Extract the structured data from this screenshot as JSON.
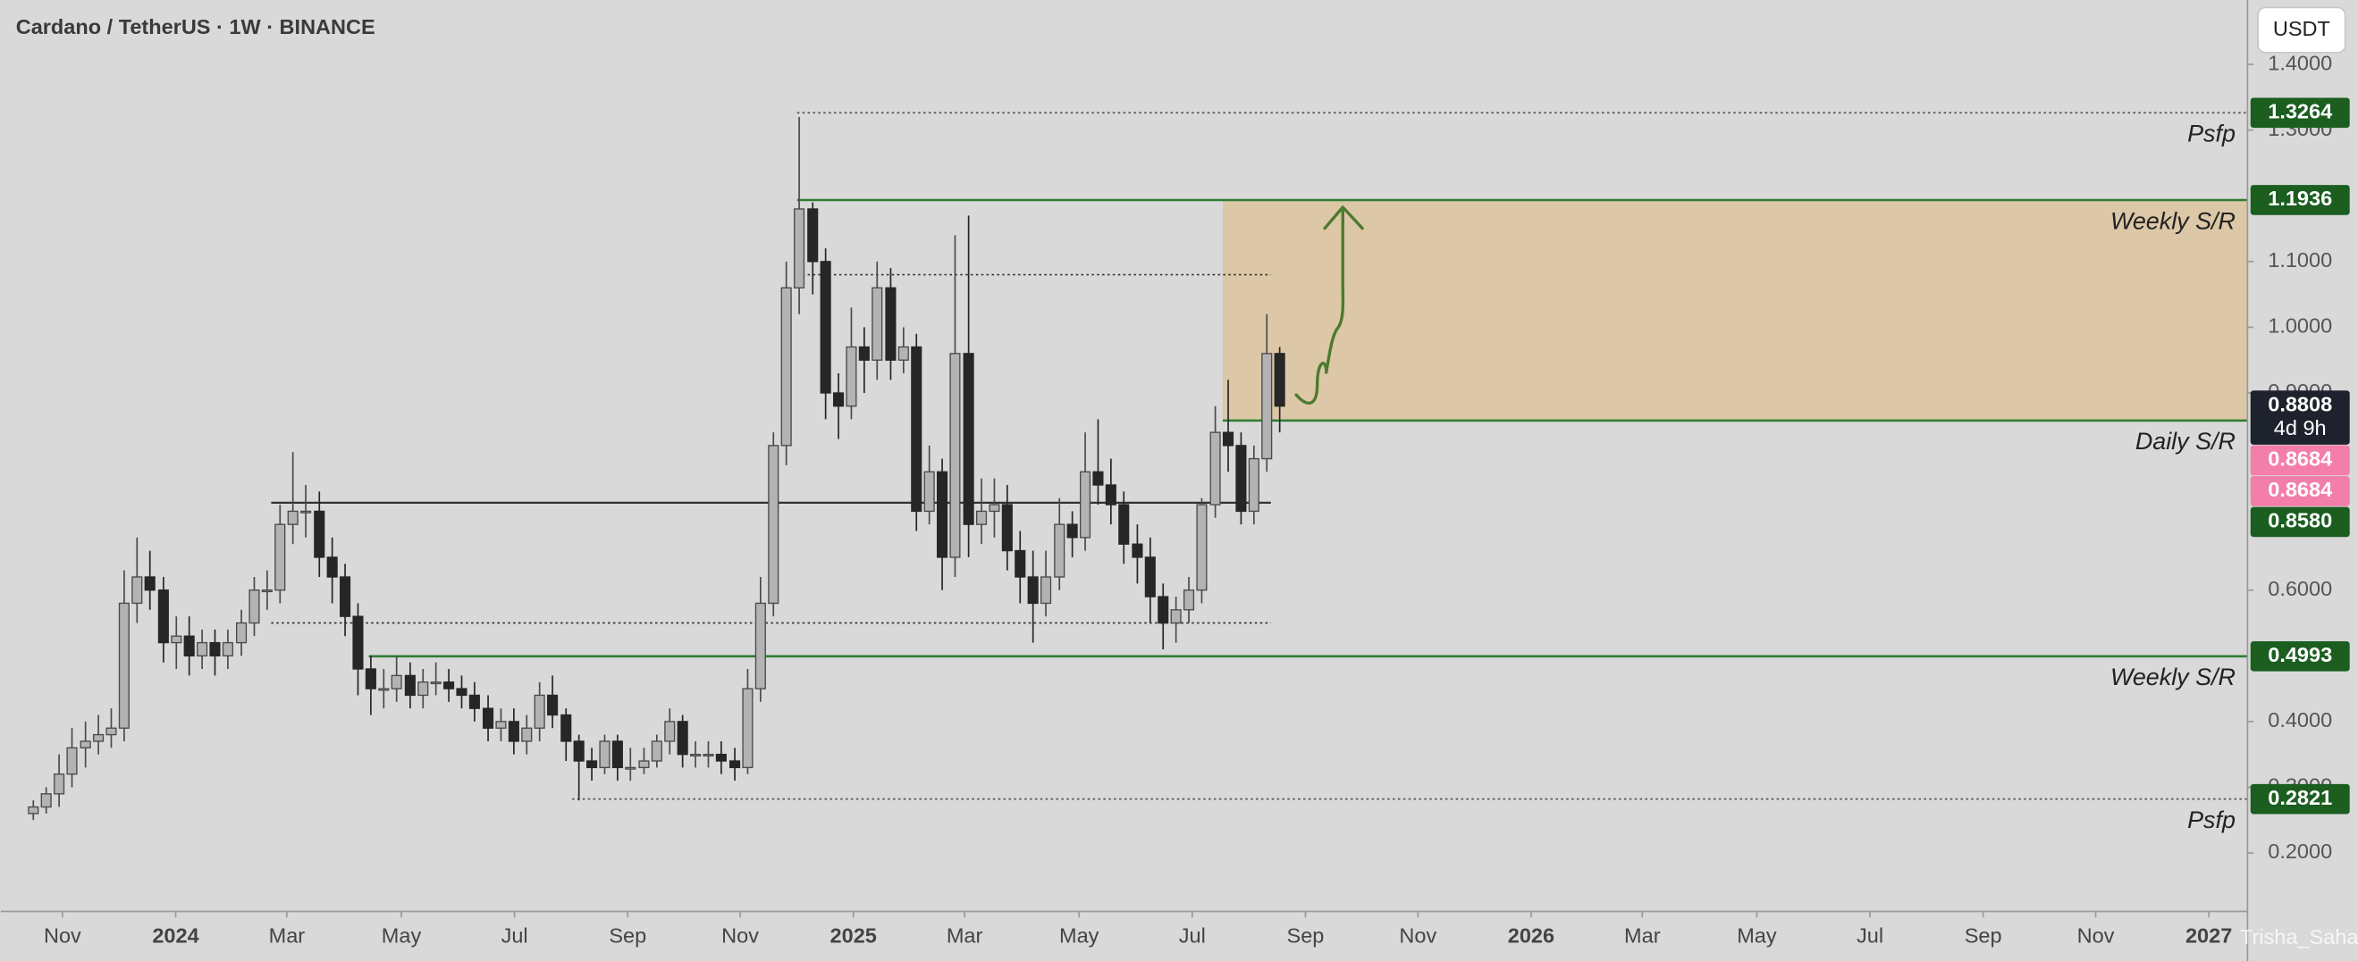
{
  "chart_data": {
    "type": "candlestick",
    "title": "Cardano / TetherUS · 1W · BINANCE",
    "currency_button": "USDT",
    "watermark": "Trisha_Saha",
    "up_color": "#b3b3b3",
    "down_color": "#262626",
    "x": [
      2023.79,
      2023.809,
      2023.828,
      2023.847,
      2023.867,
      2023.886,
      2023.905,
      2023.924,
      2023.943,
      2023.962,
      2023.982,
      2024.001,
      2024.02,
      2024.039,
      2024.058,
      2024.077,
      2024.097,
      2024.116,
      2024.135,
      2024.154,
      2024.173,
      2024.192,
      2024.212,
      2024.231,
      2024.25,
      2024.269,
      2024.288,
      2024.307,
      2024.326,
      2024.346,
      2024.365,
      2024.384,
      2024.403,
      2024.422,
      2024.441,
      2024.461,
      2024.48,
      2024.499,
      2024.518,
      2024.537,
      2024.556,
      2024.576,
      2024.595,
      2024.614,
      2024.633,
      2024.652,
      2024.671,
      2024.691,
      2024.71,
      2024.729,
      2024.748,
      2024.767,
      2024.786,
      2024.805,
      2024.825,
      2024.844,
      2024.863,
      2024.882,
      2024.901,
      2024.92,
      2024.94,
      2024.959,
      2024.978,
      2024.997,
      2025.016,
      2025.035,
      2025.055,
      2025.074,
      2025.093,
      2025.112,
      2025.131,
      2025.15,
      2025.17,
      2025.189,
      2025.208,
      2025.227,
      2025.246,
      2025.265,
      2025.284,
      2025.304,
      2025.323,
      2025.342,
      2025.361,
      2025.38,
      2025.399,
      2025.419,
      2025.438,
      2025.457,
      2025.476,
      2025.495,
      2025.514,
      2025.534,
      2025.553,
      2025.572,
      2025.591,
      2025.61,
      2025.629
    ],
    "open": [
      0.26,
      0.27,
      0.29,
      0.32,
      0.36,
      0.37,
      0.38,
      0.39,
      0.58,
      0.62,
      0.6,
      0.52,
      0.53,
      0.5,
      0.52,
      0.5,
      0.52,
      0.55,
      0.6,
      0.6,
      0.7,
      0.72,
      0.72,
      0.65,
      0.62,
      0.56,
      0.48,
      0.45,
      0.45,
      0.47,
      0.44,
      0.46,
      0.46,
      0.45,
      0.44,
      0.42,
      0.39,
      0.4,
      0.37,
      0.39,
      0.44,
      0.41,
      0.37,
      0.34,
      0.33,
      0.37,
      0.33,
      0.33,
      0.34,
      0.37,
      0.4,
      0.35,
      0.35,
      0.35,
      0.34,
      0.33,
      0.45,
      0.58,
      0.82,
      1.06,
      1.18,
      1.1,
      0.9,
      0.88,
      0.97,
      0.95,
      1.06,
      0.95,
      0.97,
      0.72,
      0.78,
      0.65,
      0.96,
      0.7,
      0.72,
      0.73,
      0.66,
      0.62,
      0.58,
      0.62,
      0.7,
      0.68,
      0.78,
      0.76,
      0.73,
      0.67,
      0.65,
      0.59,
      0.55,
      0.57,
      0.6,
      0.73,
      0.84,
      0.82,
      0.72,
      0.8,
      0.96
    ],
    "high": [
      0.28,
      0.3,
      0.35,
      0.39,
      0.4,
      0.41,
      0.42,
      0.63,
      0.68,
      0.66,
      0.62,
      0.56,
      0.56,
      0.54,
      0.54,
      0.54,
      0.57,
      0.62,
      0.63,
      0.73,
      0.81,
      0.76,
      0.75,
      0.68,
      0.64,
      0.58,
      0.5,
      0.48,
      0.5,
      0.49,
      0.48,
      0.49,
      0.48,
      0.47,
      0.46,
      0.44,
      0.42,
      0.42,
      0.41,
      0.46,
      0.47,
      0.42,
      0.38,
      0.36,
      0.38,
      0.38,
      0.36,
      0.36,
      0.38,
      0.42,
      0.41,
      0.37,
      0.37,
      0.37,
      0.36,
      0.48,
      0.62,
      0.84,
      1.1,
      1.32,
      1.19,
      1.12,
      0.93,
      1.03,
      1.0,
      1.1,
      1.09,
      1.0,
      0.99,
      0.82,
      0.8,
      1.14,
      1.17,
      0.77,
      0.77,
      0.76,
      0.69,
      0.66,
      0.66,
      0.74,
      0.72,
      0.84,
      0.86,
      0.8,
      0.75,
      0.7,
      0.68,
      0.61,
      0.59,
      0.62,
      0.74,
      0.88,
      0.92,
      0.84,
      0.82,
      1.02,
      0.97
    ],
    "low": [
      0.25,
      0.26,
      0.27,
      0.3,
      0.33,
      0.35,
      0.36,
      0.37,
      0.55,
      0.57,
      0.49,
      0.48,
      0.47,
      0.48,
      0.47,
      0.48,
      0.5,
      0.53,
      0.57,
      0.58,
      0.67,
      0.68,
      0.62,
      0.58,
      0.53,
      0.44,
      0.41,
      0.42,
      0.43,
      0.42,
      0.42,
      0.44,
      0.43,
      0.42,
      0.4,
      0.37,
      0.37,
      0.35,
      0.35,
      0.37,
      0.39,
      0.34,
      0.28,
      0.31,
      0.32,
      0.31,
      0.31,
      0.32,
      0.33,
      0.35,
      0.33,
      0.33,
      0.33,
      0.32,
      0.31,
      0.32,
      0.43,
      0.56,
      0.79,
      1.02,
      1.05,
      0.86,
      0.83,
      0.86,
      0.9,
      0.92,
      0.92,
      0.93,
      0.69,
      0.7,
      0.6,
      0.62,
      0.65,
      0.67,
      0.68,
      0.63,
      0.58,
      0.52,
      0.56,
      0.6,
      0.65,
      0.66,
      0.73,
      0.7,
      0.64,
      0.61,
      0.55,
      0.51,
      0.52,
      0.55,
      0.58,
      0.71,
      0.78,
      0.7,
      0.7,
      0.78,
      0.84
    ],
    "close": [
      0.27,
      0.29,
      0.32,
      0.36,
      0.37,
      0.38,
      0.39,
      0.58,
      0.62,
      0.6,
      0.52,
      0.53,
      0.5,
      0.52,
      0.5,
      0.52,
      0.55,
      0.6,
      0.6,
      0.7,
      0.72,
      0.72,
      0.65,
      0.62,
      0.56,
      0.48,
      0.45,
      0.45,
      0.47,
      0.44,
      0.46,
      0.46,
      0.45,
      0.44,
      0.42,
      0.39,
      0.4,
      0.37,
      0.39,
      0.44,
      0.41,
      0.37,
      0.34,
      0.33,
      0.37,
      0.33,
      0.33,
      0.34,
      0.37,
      0.4,
      0.35,
      0.35,
      0.35,
      0.34,
      0.33,
      0.45,
      0.58,
      0.82,
      1.06,
      1.18,
      1.1,
      0.9,
      0.88,
      0.97,
      0.95,
      1.06,
      0.95,
      0.97,
      0.72,
      0.78,
      0.65,
      0.96,
      0.7,
      0.72,
      0.73,
      0.66,
      0.62,
      0.58,
      0.62,
      0.7,
      0.68,
      0.78,
      0.76,
      0.73,
      0.67,
      0.65,
      0.59,
      0.55,
      0.57,
      0.6,
      0.73,
      0.84,
      0.82,
      0.72,
      0.8,
      0.96,
      0.88
    ],
    "xlim": [
      2023.742,
      2027.057
    ],
    "xticks": [
      {
        "value": 2023.833,
        "label": "Nov"
      },
      2024,
      {
        "value": 2024.164,
        "label": "Mar"
      },
      {
        "value": 2024.333,
        "label": "May"
      },
      {
        "value": 2024.5,
        "label": "Jul"
      },
      {
        "value": 2024.667,
        "label": "Sep"
      },
      {
        "value": 2024.833,
        "label": "Nov"
      },
      2025,
      {
        "value": 2025.164,
        "label": "Mar"
      },
      {
        "value": 2025.333,
        "label": "May"
      },
      {
        "value": 2025.5,
        "label": "Jul"
      },
      {
        "value": 2025.667,
        "label": "Sep"
      },
      {
        "value": 2025.833,
        "label": "Nov"
      },
      2026,
      {
        "value": 2026.164,
        "label": "Mar"
      },
      {
        "value": 2026.333,
        "label": "May"
      },
      {
        "value": 2026.5,
        "label": "Jul"
      },
      {
        "value": 2026.667,
        "label": "Sep"
      },
      {
        "value": 2026.833,
        "label": "Nov"
      },
      2027
    ],
    "ylim": [
      0.111,
      1.498
    ],
    "yticks": [
      {
        "value": 1.4,
        "label": "1.4000"
      },
      {
        "value": 1.3,
        "label": "1.3000"
      },
      {
        "value": 1.1,
        "label": "1.1000"
      },
      {
        "value": 1.0,
        "label": "1.0000"
      },
      {
        "value": 0.9,
        "label": "0.9000"
      },
      {
        "value": 0.6,
        "label": "0.6000"
      },
      {
        "value": 0.4,
        "label": "0.4000"
      },
      {
        "value": 0.3,
        "label": "0.3000"
      },
      {
        "value": 0.2,
        "label": "0.2000"
      }
    ],
    "grid": false,
    "zone": {
      "x0": 2025.545,
      "low": 0.858,
      "high": 1.1936,
      "color": "#dcc7a6"
    },
    "levels": [
      {
        "value": 1.3264,
        "name": "Psfp",
        "price_label": "1.3264",
        "x0": 2024.917,
        "style": "dotted",
        "color": "#555555"
      },
      {
        "value": 1.1936,
        "name": "Weekly S/R",
        "price_label": "1.1936",
        "x0": 2024.917,
        "style": "solid",
        "color": "#2e7d32"
      },
      {
        "value": 0.858,
        "name": "Daily S/R",
        "price_label": "0.8580",
        "x0": 2025.545,
        "style": "solid",
        "color": "#2e7d32"
      },
      {
        "value": 0.4993,
        "name": "Weekly S/R",
        "price_label": "0.4993",
        "x0": 2024.285,
        "style": "solid",
        "color": "#2e7d32"
      },
      {
        "value": 0.2821,
        "name": "Psfp",
        "price_label": "0.2821",
        "x0": 2024.585,
        "style": "dotted",
        "color": "#555555"
      }
    ],
    "profile_lines": [
      {
        "value": 1.08,
        "x0": 2024.917,
        "x1": 2025.616,
        "style": "dotted"
      },
      {
        "value": 0.733,
        "x0": 2024.141,
        "x1": 2025.616,
        "style": "solid"
      },
      {
        "value": 0.55,
        "x0": 2024.141,
        "x1": 2025.616,
        "style": "dotted"
      }
    ],
    "current_price": {
      "value": 0.8808,
      "label": "0.8808",
      "countdown": "4d 9h",
      "color": "#1e222d"
    },
    "ma_tags": [
      {
        "value": 0.8684,
        "label": "0.8684",
        "color": "#f27ea9"
      },
      {
        "value": 0.8684,
        "label": "0.8684",
        "color": "#f27ea9"
      }
    ],
    "level_tag_color": "#1b5e20"
  }
}
